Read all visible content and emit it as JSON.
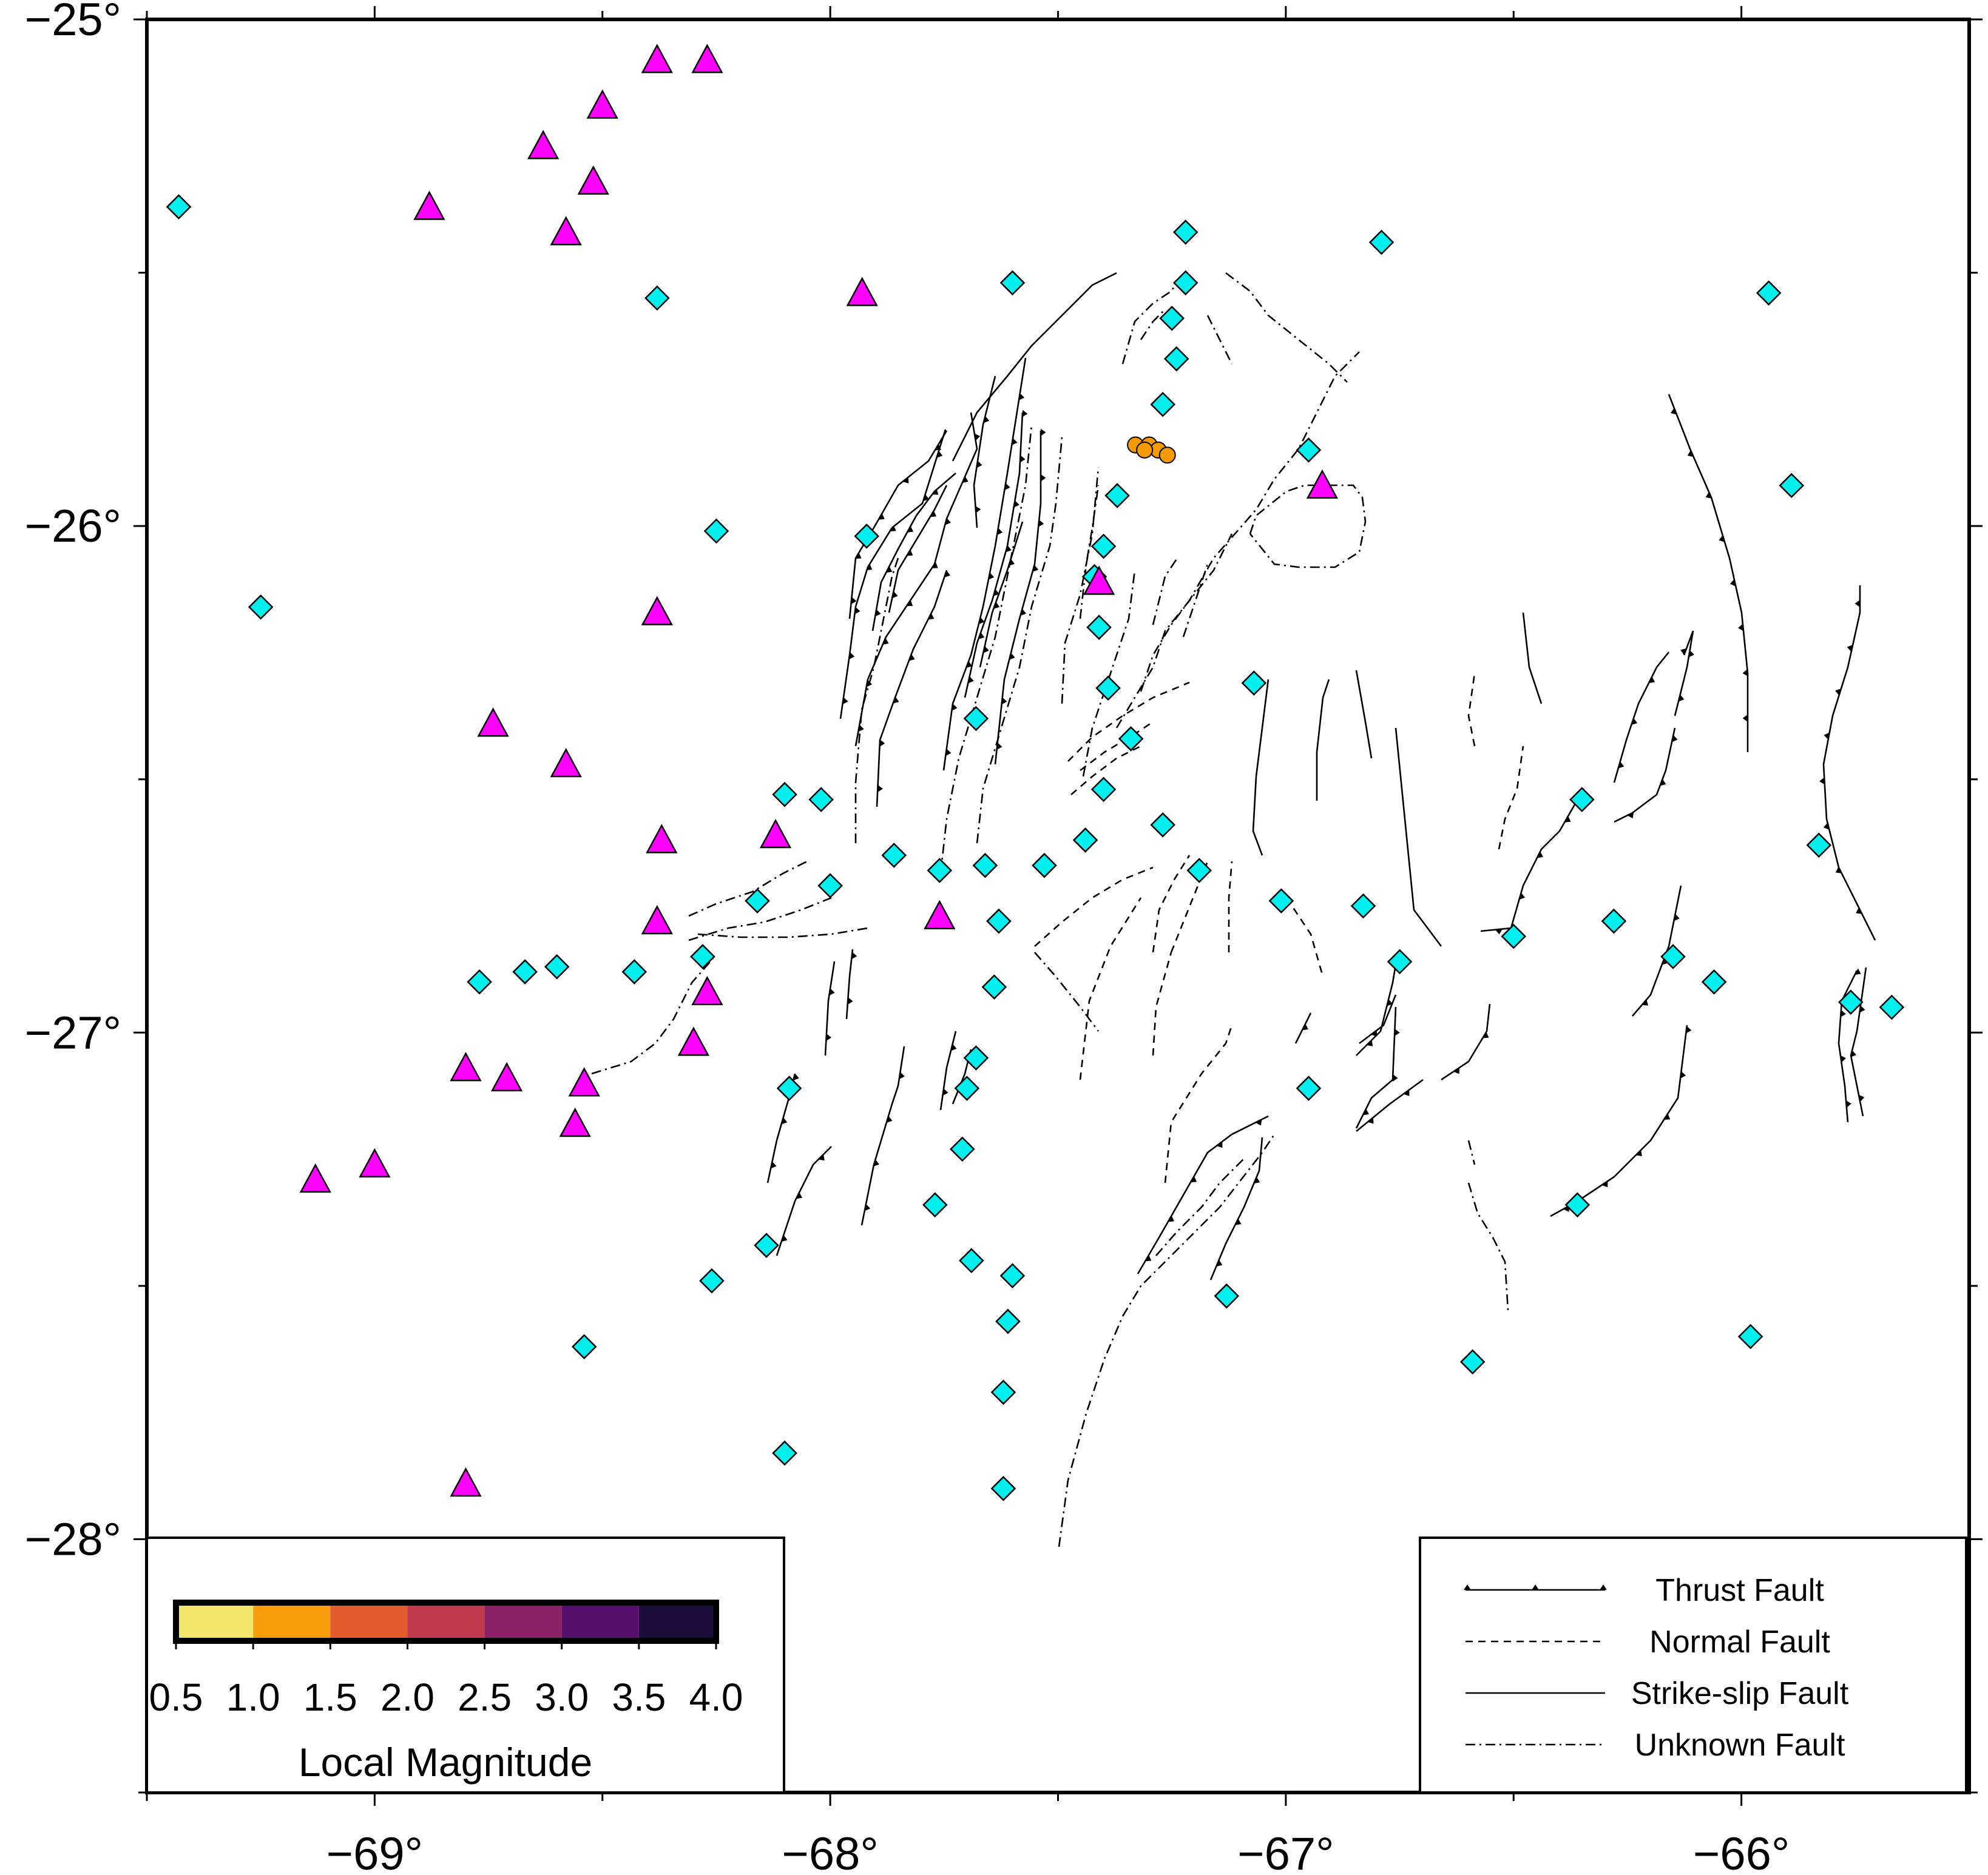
{
  "map": {
    "lon_range": [
      -69.5,
      -65.5
    ],
    "lat_range": [
      -28.5,
      -25.0
    ],
    "lon_tick_labels": [
      {
        "lon": -69,
        "label": "−69°"
      },
      {
        "lon": -68,
        "label": "−68°"
      },
      {
        "lon": -67,
        "label": "−67°"
      },
      {
        "lon": -66,
        "label": "−66°"
      }
    ],
    "lat_tick_labels": [
      {
        "lat": -25,
        "label": "−25°"
      },
      {
        "lat": -26,
        "label": "−26°"
      },
      {
        "lat": -27,
        "label": "−27°"
      },
      {
        "lat": -28,
        "label": "−28°"
      }
    ],
    "symbol_colors": {
      "station_diamond": "#00f0f0",
      "triangle": "#ff00ff",
      "event": "#f59a00"
    },
    "diamond_stations": [
      [
        -69.43,
        -25.37
      ],
      [
        -69.25,
        -26.16
      ],
      [
        -68.38,
        -25.55
      ],
      [
        -68.25,
        -26.01
      ],
      [
        -67.6,
        -25.52
      ],
      [
        -67.22,
        -25.42
      ],
      [
        -67.22,
        -25.52
      ],
      [
        -67.25,
        -25.59
      ],
      [
        -67.24,
        -25.67
      ],
      [
        -67.27,
        -25.76
      ],
      [
        -66.95,
        -25.85
      ],
      [
        -66.79,
        -25.44
      ],
      [
        -65.94,
        -25.54
      ],
      [
        -65.89,
        -25.92
      ],
      [
        -67.92,
        -26.02
      ],
      [
        -67.37,
        -25.94
      ],
      [
        -67.4,
        -26.04
      ],
      [
        -67.42,
        -26.1
      ],
      [
        -67.41,
        -26.2
      ],
      [
        -67.39,
        -26.32
      ],
      [
        -67.34,
        -26.42
      ],
      [
        -67.07,
        -26.31
      ],
      [
        -67.68,
        -26.38
      ],
      [
        -67.4,
        -26.52
      ],
      [
        -68.1,
        -26.53
      ],
      [
        -68.02,
        -26.54
      ],
      [
        -67.44,
        -26.62
      ],
      [
        -67.27,
        -26.59
      ],
      [
        -67.19,
        -26.68
      ],
      [
        -67.86,
        -26.65
      ],
      [
        -67.76,
        -26.68
      ],
      [
        -67.66,
        -26.67
      ],
      [
        -67.53,
        -26.67
      ],
      [
        -68.0,
        -26.71
      ],
      [
        -68.16,
        -26.74
      ],
      [
        -67.01,
        -26.74
      ],
      [
        -66.83,
        -26.75
      ],
      [
        -66.75,
        -26.86
      ],
      [
        -66.5,
        -26.81
      ],
      [
        -66.35,
        -26.54
      ],
      [
        -66.28,
        -26.78
      ],
      [
        -66.15,
        -26.85
      ],
      [
        -66.06,
        -26.9
      ],
      [
        -65.83,
        -26.63
      ],
      [
        -65.76,
        -26.94
      ],
      [
        -65.67,
        -26.95
      ],
      [
        -67.63,
        -26.78
      ],
      [
        -67.64,
        -26.91
      ],
      [
        -67.68,
        -27.05
      ],
      [
        -67.7,
        -27.11
      ],
      [
        -67.71,
        -27.23
      ],
      [
        -67.77,
        -27.34
      ],
      [
        -67.69,
        -27.45
      ],
      [
        -67.6,
        -27.48
      ],
      [
        -67.61,
        -27.57
      ],
      [
        -67.62,
        -27.71
      ],
      [
        -67.62,
        -27.9
      ],
      [
        -67.13,
        -27.52
      ],
      [
        -66.95,
        -27.11
      ],
      [
        -66.36,
        -27.34
      ],
      [
        -66.59,
        -27.65
      ],
      [
        -65.98,
        -27.6
      ],
      [
        -68.28,
        -26.85
      ],
      [
        -68.43,
        -26.88
      ],
      [
        -68.6,
        -26.87
      ],
      [
        -68.67,
        -26.88
      ],
      [
        -68.77,
        -26.9
      ],
      [
        -68.09,
        -27.11
      ],
      [
        -68.14,
        -27.42
      ],
      [
        -68.26,
        -27.49
      ],
      [
        -68.54,
        -27.62
      ],
      [
        -68.1,
        -27.83
      ]
    ],
    "triangles": [
      [
        -68.38,
        -25.08
      ],
      [
        -68.27,
        -25.08
      ],
      [
        -68.5,
        -25.17
      ],
      [
        -68.63,
        -25.25
      ],
      [
        -68.52,
        -25.32
      ],
      [
        -68.88,
        -25.37
      ],
      [
        -68.58,
        -25.42
      ],
      [
        -67.93,
        -25.54
      ],
      [
        -68.38,
        -26.17
      ],
      [
        -68.74,
        -26.39
      ],
      [
        -68.58,
        -26.47
      ],
      [
        -68.37,
        -26.62
      ],
      [
        -68.12,
        -26.61
      ],
      [
        -68.38,
        -26.78
      ],
      [
        -67.76,
        -26.77
      ],
      [
        -68.27,
        -26.92
      ],
      [
        -68.3,
        -27.02
      ],
      [
        -68.8,
        -27.07
      ],
      [
        -68.71,
        -27.09
      ],
      [
        -68.54,
        -27.1
      ],
      [
        -68.56,
        -27.18
      ],
      [
        -69.0,
        -27.26
      ],
      [
        -69.13,
        -27.29
      ],
      [
        -68.8,
        -27.89
      ],
      [
        -67.41,
        -26.11
      ],
      [
        -66.92,
        -25.92
      ]
    ],
    "events": [
      [
        -67.33,
        -25.84
      ],
      [
        -67.3,
        -25.84
      ],
      [
        -67.28,
        -25.85
      ],
      [
        -67.26,
        -25.86
      ],
      [
        -67.31,
        -25.85
      ]
    ]
  },
  "colorbar": {
    "title": "Local Magnitude",
    "tick_labels": [
      "0.5",
      "1.0",
      "1.5",
      "2.0",
      "2.5",
      "3.0",
      "3.5",
      "4.0"
    ],
    "colors": [
      "#f1e66b",
      "#f99c09",
      "#e55b30",
      "#c13a50",
      "#8b2266",
      "#560f6d",
      "#1c0c3c"
    ]
  },
  "legend": {
    "items": [
      {
        "label": "Thrust Fault",
        "style": "thrust"
      },
      {
        "label": "Normal Fault",
        "style": "dashed"
      },
      {
        "label": "Strike-slip Fault",
        "style": "solid"
      },
      {
        "label": "Unknown Fault",
        "style": "dashdot"
      }
    ]
  }
}
